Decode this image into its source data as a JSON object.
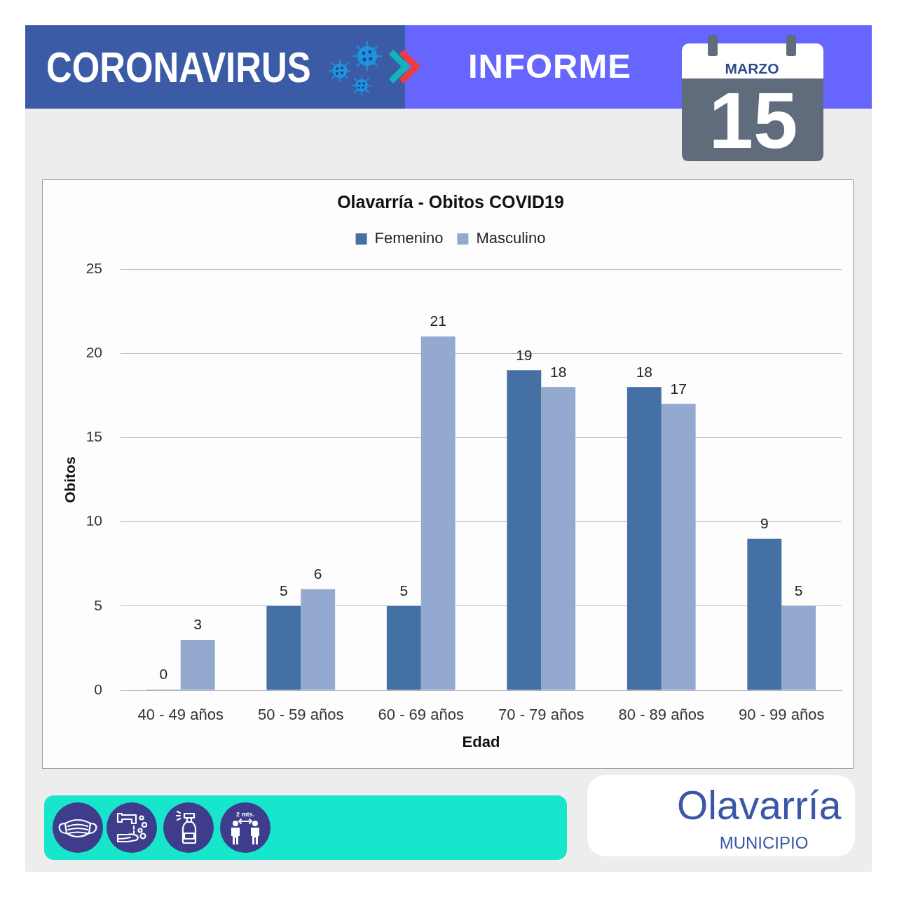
{
  "chart_data": {
    "type": "bar",
    "title": "Olavarría - Obitos COVID19",
    "xlabel": "Edad",
    "ylabel": "Obitos",
    "categories": [
      "40 - 49 años",
      "50 - 59 años",
      "60 - 69 años",
      "70 - 79 años",
      "80 - 89 años",
      "90 - 99 años"
    ],
    "series": [
      {
        "name": "Femenino",
        "color": "#4470a4",
        "values": [
          0,
          5,
          5,
          19,
          18,
          9
        ]
      },
      {
        "name": "Masculino",
        "color": "#93a9d0",
        "values": [
          3,
          6,
          21,
          18,
          17,
          5
        ]
      }
    ],
    "ylim": [
      0,
      25
    ],
    "yticks": [
      0,
      5,
      10,
      15,
      20,
      25
    ],
    "grid": "y",
    "legend": "top",
    "data_labels": true,
    "annotations": [
      "CORONAVIRUS",
      "INFORME",
      "MARZO",
      "15",
      "2 mts.",
      "Olavarría",
      "MUNICIPIO"
    ]
  }
}
